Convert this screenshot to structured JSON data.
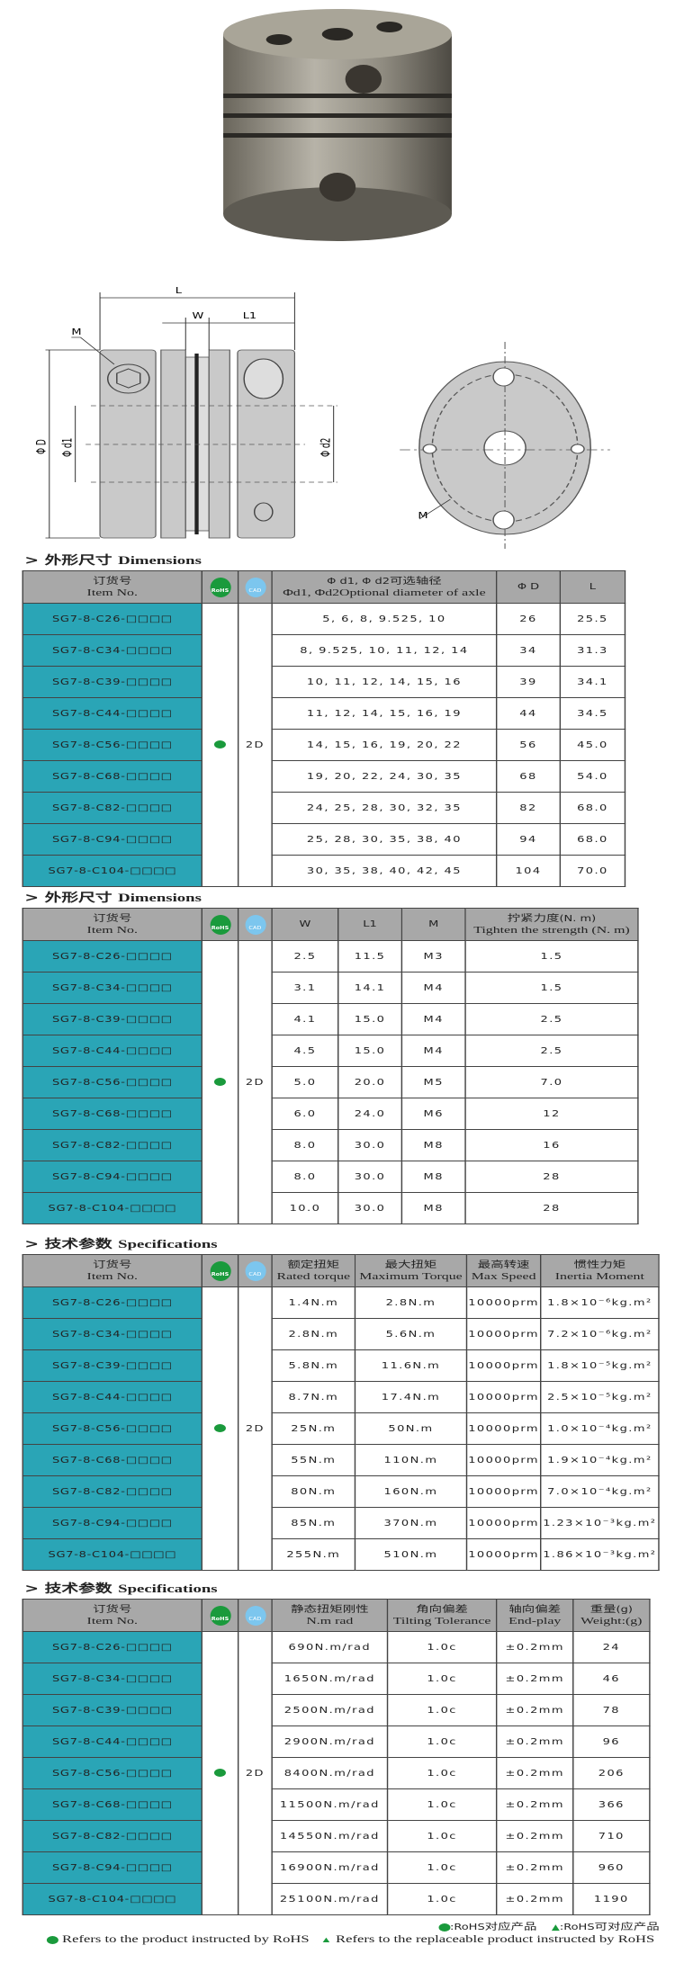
{
  "drawing_labels": {
    "L": "L",
    "W": "W",
    "L1": "L1",
    "M": "M",
    "phiD": "Φ D",
    "phid1": "Φ d1",
    "phid2": "Φ d2",
    "M2": "M"
  },
  "icons": {
    "rohs": "RoHS",
    "cad": "CAD"
  },
  "colors": {
    "item_bg": "#2aa5b6",
    "header_bg": "#a8a8a8",
    "rohs_green": "#1a9a3c",
    "cad_blue": "#7cc6ee"
  },
  "cad_value": "2D",
  "tables": [
    {
      "heading_cn": "> 外形尺寸 ",
      "heading_en": "Dimensions",
      "headers": [
        [
          "订货号",
          "Item No."
        ],
        [
          "",
          ""
        ],
        [
          "",
          ""
        ],
        [
          "Φ d1, Φ d2可选轴径",
          "Φd1, Φd2Optional diameter of axle"
        ],
        [
          "Φ D",
          ""
        ],
        [
          "L",
          ""
        ]
      ],
      "rows": [
        [
          "SG7-8-C26-□□□□",
          "5, 6, 8, 9.525, 10",
          "26",
          "25.5"
        ],
        [
          "SG7-8-C34-□□□□",
          "8, 9.525, 10, 11, 12, 14",
          "34",
          "31.3"
        ],
        [
          "SG7-8-C39-□□□□",
          "10, 11, 12, 14, 15, 16",
          "39",
          "34.1"
        ],
        [
          "SG7-8-C44-□□□□",
          "11, 12, 14, 15, 16, 19",
          "44",
          "34.5"
        ],
        [
          "SG7-8-C56-□□□□",
          "14, 15, 16, 19, 20, 22",
          "56",
          "45.0"
        ],
        [
          "SG7-8-C68-□□□□",
          "19, 20, 22, 24, 30, 35",
          "68",
          "54.0"
        ],
        [
          "SG7-8-C82-□□□□",
          "24, 25, 28, 30, 32, 35",
          "82",
          "68.0"
        ],
        [
          "SG7-8-C94-□□□□",
          "25, 28, 30, 35, 38, 40",
          "94",
          "68.0"
        ],
        [
          "SG7-8-C104-□□□□",
          "30, 35, 38, 40, 42, 45",
          "104",
          "70.0"
        ]
      ]
    },
    {
      "heading_cn": "> 外形尺寸 ",
      "heading_en": "Dimensions",
      "headers": [
        [
          "订货号",
          "Item No."
        ],
        [
          "",
          ""
        ],
        [
          "",
          ""
        ],
        [
          "W",
          ""
        ],
        [
          "L1",
          ""
        ],
        [
          "M",
          ""
        ],
        [
          "拧紧力度(N. m)",
          "Tighten the strength (N. m)"
        ]
      ],
      "rows": [
        [
          "SG7-8-C26-□□□□",
          "2.5",
          "11.5",
          "M3",
          "1.5"
        ],
        [
          "SG7-8-C34-□□□□",
          "3.1",
          "14.1",
          "M4",
          "1.5"
        ],
        [
          "SG7-8-C39-□□□□",
          "4.1",
          "15.0",
          "M4",
          "2.5"
        ],
        [
          "SG7-8-C44-□□□□",
          "4.5",
          "15.0",
          "M4",
          "2.5"
        ],
        [
          "SG7-8-C56-□□□□",
          "5.0",
          "20.0",
          "M5",
          "7.0"
        ],
        [
          "SG7-8-C68-□□□□",
          "6.0",
          "24.0",
          "M6",
          "12"
        ],
        [
          "SG7-8-C82-□□□□",
          "8.0",
          "30.0",
          "M8",
          "16"
        ],
        [
          "SG7-8-C94-□□□□",
          "8.0",
          "30.0",
          "M8",
          "28"
        ],
        [
          "SG7-8-C104-□□□□",
          "10.0",
          "30.0",
          "M8",
          "28"
        ]
      ]
    },
    {
      "heading_cn": "> 技术参数 ",
      "heading_en": "Specifications",
      "headers": [
        [
          "订货号",
          "Item No."
        ],
        [
          "",
          ""
        ],
        [
          "",
          ""
        ],
        [
          "额定扭矩",
          "Rated torque"
        ],
        [
          "最大扭矩",
          "Maximum Torque"
        ],
        [
          "最高转速",
          "Max Speed"
        ],
        [
          "惯性力矩",
          "Inertia Moment"
        ]
      ],
      "rows": [
        [
          "SG7-8-C26-□□□□",
          "1.4N.m",
          "2.8N.m",
          "10000prm",
          "1.8×10⁻⁶kg.m²"
        ],
        [
          "SG7-8-C34-□□□□",
          "2.8N.m",
          "5.6N.m",
          "10000prm",
          "7.2×10⁻⁶kg.m²"
        ],
        [
          "SG7-8-C39-□□□□",
          "5.8N.m",
          "11.6N.m",
          "10000prm",
          "1.8×10⁻⁵kg.m²"
        ],
        [
          "SG7-8-C44-□□□□",
          "8.7N.m",
          "17.4N.m",
          "10000prm",
          "2.5×10⁻⁵kg.m²"
        ],
        [
          "SG7-8-C56-□□□□",
          "25N.m",
          "50N.m",
          "10000prm",
          "1.0×10⁻⁴kg.m²"
        ],
        [
          "SG7-8-C68-□□□□",
          "55N.m",
          "110N.m",
          "10000prm",
          "1.9×10⁻⁴kg.m²"
        ],
        [
          "SG7-8-C82-□□□□",
          "80N.m",
          "160N.m",
          "10000prm",
          "7.0×10⁻⁴kg.m²"
        ],
        [
          "SG7-8-C94-□□□□",
          "85N.m",
          "370N.m",
          "10000prm",
          "1.23×10⁻³kg.m²"
        ],
        [
          "SG7-8-C104-□□□□",
          "255N.m",
          "510N.m",
          "10000prm",
          "1.86×10⁻³kg.m²"
        ]
      ]
    },
    {
      "heading_cn": "> 技术参数 ",
      "heading_en": "Specifications",
      "headers": [
        [
          "订货号",
          "Item No."
        ],
        [
          "",
          ""
        ],
        [
          "",
          ""
        ],
        [
          "静态扭矩刚性",
          "N.m rad"
        ],
        [
          "角向偏差",
          "Tilting Tolerance"
        ],
        [
          "轴向偏差",
          "End-play"
        ],
        [
          "重量(g)",
          "Weight:(g)"
        ]
      ],
      "rows": [
        [
          "SG7-8-C26-□□□□",
          "690N.m/rad",
          "1.0c",
          "±0.2mm",
          "24"
        ],
        [
          "SG7-8-C34-□□□□",
          "1650N.m/rad",
          "1.0c",
          "±0.2mm",
          "46"
        ],
        [
          "SG7-8-C39-□□□□",
          "2500N.m/rad",
          "1.0c",
          "±0.2mm",
          "78"
        ],
        [
          "SG7-8-C44-□□□□",
          "2900N.m/rad",
          "1.0c",
          "±0.2mm",
          "96"
        ],
        [
          "SG7-8-C56-□□□□",
          "8400N.m/rad",
          "1.0c",
          "±0.2mm",
          "206"
        ],
        [
          "SG7-8-C68-□□□□",
          "11500N.m/rad",
          "1.0c",
          "±0.2mm",
          "366"
        ],
        [
          "SG7-8-C82-□□□□",
          "14550N.m/rad",
          "1.0c",
          "±0.2mm",
          "710"
        ],
        [
          "SG7-8-C94-□□□□",
          "16900N.m/rad",
          "1.0c",
          "±0.2mm",
          "960"
        ],
        [
          "SG7-8-C104-□□□□",
          "25100N.m/rad",
          "1.0c",
          "±0.2mm",
          "1190"
        ]
      ]
    }
  ],
  "footnote": {
    "cn_dot": ":RoHS对应产品",
    "cn_tri": ":RoHS可对应产品",
    "en_dot": "Refers to the product instructed by RoHS",
    "en_tri": "Refers to the replaceable product instructed by RoHS"
  }
}
